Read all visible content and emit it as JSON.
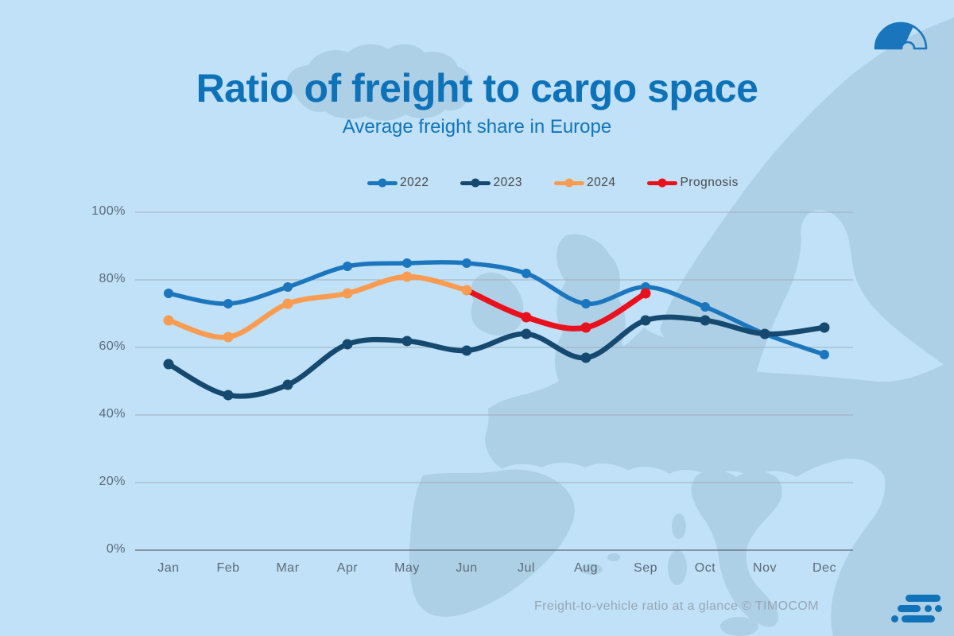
{
  "header": {
    "title": "Ratio of freight to cargo space",
    "subtitle": "Average freight share in Europe"
  },
  "footer": {
    "credit": "Freight-to-vehicle ratio at a glance © TIMOCOM"
  },
  "icons": {
    "top_right_logo": "gauge-semicircle-icon",
    "bottom_right_logo": "timocom-bars-logo"
  },
  "colors": {
    "background": "#C0E1F8",
    "map_land": "#AED0E6",
    "title": "#0E72B8",
    "subtitle": "#1274BA",
    "gridline": "#9AA5AE",
    "axis_line": "#5C6B79",
    "axis_text": "#5C6B79",
    "legend_text": "#4A4A4A",
    "footer_text": "#96A6B3",
    "logo_blue": "#1B75BC"
  },
  "chart_data": {
    "type": "line",
    "title": "Ratio of freight to cargo space",
    "subtitle": "Average freight share in Europe",
    "categories": [
      "Jan",
      "Feb",
      "Mar",
      "Apr",
      "May",
      "Jun",
      "Jul",
      "Aug",
      "Sep",
      "Oct",
      "Nov",
      "Dec"
    ],
    "unit": "%",
    "grid": true,
    "legend_position": "top",
    "y_axis": {
      "range": [
        0,
        100
      ],
      "ticks": [
        {
          "label": "0%",
          "value": 0
        },
        {
          "label": "20%",
          "value": 20
        },
        {
          "label": "40%",
          "value": 40
        },
        {
          "label": "60%",
          "value": 60
        },
        {
          "label": "80%",
          "value": 80
        },
        {
          "label": "100%",
          "value": 100
        }
      ]
    },
    "series": [
      {
        "name": "2022",
        "color": "#1B76BD",
        "dots_skip_first": false,
        "values": [
          76,
          73,
          78,
          84,
          85,
          85,
          82,
          73,
          78,
          72,
          64,
          58
        ]
      },
      {
        "name": "2023",
        "color": "#16496F",
        "dots_skip_first": false,
        "values": [
          55,
          46,
          49,
          61,
          62,
          59,
          64,
          57,
          68,
          68,
          64,
          66
        ]
      },
      {
        "name": "2024",
        "color": "#F99C51",
        "dots_skip_first": false,
        "values": [
          68,
          63,
          73,
          76,
          81,
          77,
          null,
          null,
          null,
          null,
          null,
          null
        ]
      },
      {
        "name": "Prognosis",
        "color": "#E9111E",
        "dots_skip_first": true,
        "values": [
          null,
          null,
          null,
          null,
          null,
          77,
          69,
          66,
          76,
          null,
          null,
          null
        ]
      }
    ]
  }
}
